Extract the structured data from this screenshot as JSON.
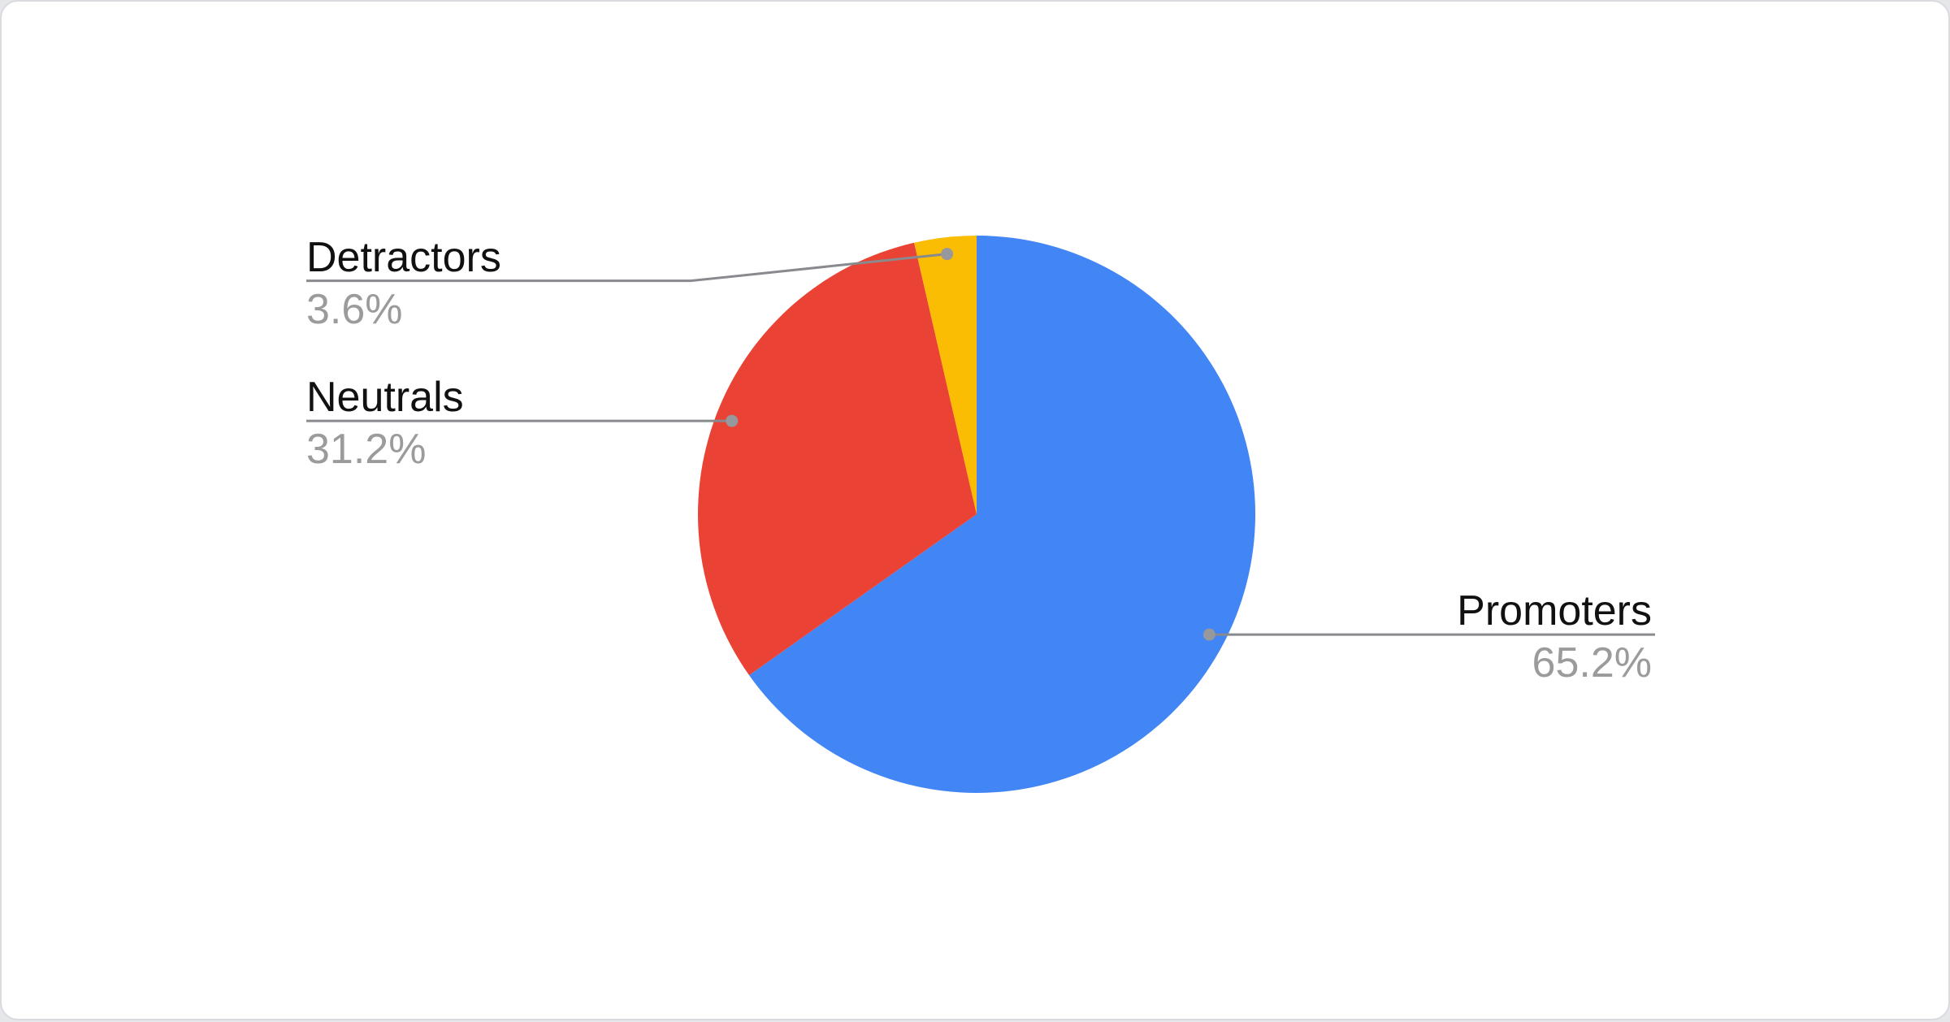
{
  "chart_data": {
    "type": "pie",
    "title": "",
    "legend_position": "callout-labels",
    "direction": "clockwise",
    "start_angle_deg": 0,
    "total_percent": 100,
    "slices": [
      {
        "label": "Promoters",
        "value": 65.2,
        "display": "65.2%",
        "color": "#4285F4",
        "callout_side": "right",
        "label_y_offset": 0
      },
      {
        "label": "Neutrals",
        "value": 31.2,
        "display": "31.2%",
        "color": "#EA4335",
        "callout_side": "left",
        "label_y_offset": 0
      },
      {
        "label": "Detractors",
        "value": 3.6,
        "display": "3.6%",
        "color": "#FBBC04",
        "callout_side": "left",
        "label_y_offset": 33
      }
    ]
  },
  "colors": {
    "page_background": "#e5e7ea",
    "card_background": "#ffffff",
    "card_border": "#d9dbde",
    "label_text": "#111111",
    "percent_text": "#9b9b9b",
    "leader_line": "#888a8d",
    "dot": "#96989b"
  }
}
